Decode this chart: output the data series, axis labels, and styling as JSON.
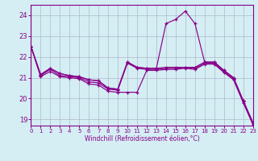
{
  "xlabel": "Windchill (Refroidissement éolien,°C)",
  "background_color": "#d4eef4",
  "line_color": "#880088",
  "grid_color": "#b0b8cc",
  "xlim": [
    0,
    23
  ],
  "ylim": [
    18.7,
    24.5
  ],
  "yticks": [
    19,
    20,
    21,
    22,
    23,
    24
  ],
  "xticks": [
    0,
    1,
    2,
    3,
    4,
    5,
    6,
    7,
    8,
    9,
    10,
    11,
    12,
    13,
    14,
    15,
    16,
    17,
    18,
    19,
    20,
    21,
    22,
    23
  ],
  "series": [
    [
      22.5,
      21.15,
      21.45,
      21.2,
      21.1,
      21.05,
      20.9,
      20.85,
      20.5,
      20.45,
      21.75,
      21.5,
      21.45,
      21.45,
      23.6,
      23.8,
      24.2,
      23.6,
      21.75,
      21.75,
      21.35,
      21.0,
      19.9,
      18.85
    ],
    [
      22.5,
      21.15,
      21.45,
      21.2,
      21.1,
      21.05,
      20.9,
      20.85,
      20.5,
      20.45,
      21.75,
      21.5,
      21.45,
      21.45,
      21.5,
      21.5,
      21.5,
      21.5,
      21.75,
      21.75,
      21.35,
      21.0,
      19.9,
      18.85
    ],
    [
      22.5,
      21.1,
      21.4,
      21.1,
      21.05,
      21.0,
      20.8,
      20.75,
      20.45,
      20.4,
      21.7,
      21.45,
      21.4,
      21.4,
      21.45,
      21.45,
      21.5,
      21.45,
      21.7,
      21.7,
      21.3,
      20.95,
      19.85,
      18.8
    ],
    [
      22.5,
      21.05,
      21.3,
      21.05,
      21.0,
      20.95,
      20.7,
      20.65,
      20.35,
      20.3,
      20.3,
      20.3,
      21.35,
      21.35,
      21.4,
      21.4,
      21.45,
      21.4,
      21.65,
      21.65,
      21.25,
      20.9,
      19.8,
      18.75
    ]
  ]
}
